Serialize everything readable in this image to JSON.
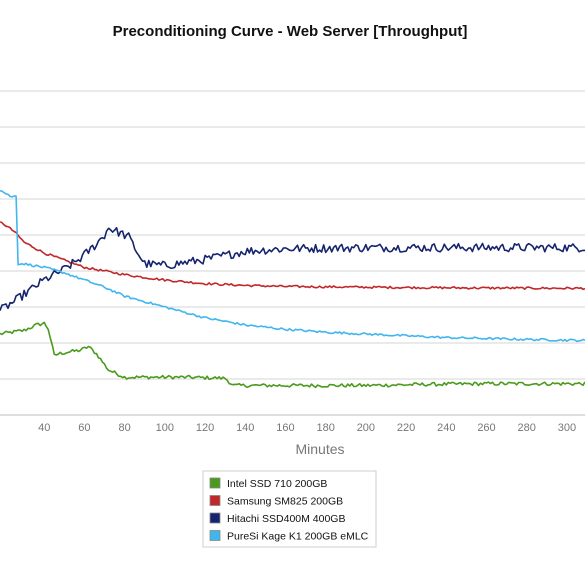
{
  "chart_data": {
    "type": "line",
    "title": "Preconditioning Curve - Web Server [Throughput]",
    "xlabel": "Minutes",
    "ylabel": "",
    "xlim": [
      18,
      309
    ],
    "ylim": [
      0,
      10
    ],
    "x_ticks": [
      40,
      60,
      80,
      100,
      120,
      140,
      160,
      180,
      200,
      220,
      240,
      260,
      280,
      300
    ],
    "y_gridlines": [
      1,
      2,
      3,
      4,
      5,
      6,
      7,
      8,
      9
    ],
    "grid": true,
    "legend_position": "bottom-center",
    "series": [
      {
        "name": "Intel SSD 710 200GB",
        "color": "#4a9a1c",
        "x": [
          18,
          30,
          36,
          40,
          42,
          45,
          47,
          52,
          58,
          62,
          66,
          72,
          80,
          90,
          100,
          110,
          130,
          134,
          150,
          180,
          200,
          230,
          260,
          290,
          309
        ],
        "y": [
          2.25,
          2.35,
          2.5,
          2.55,
          2.4,
          1.65,
          1.7,
          1.75,
          1.8,
          1.9,
          1.7,
          1.25,
          1.05,
          1.05,
          1.05,
          1.05,
          1.02,
          0.82,
          0.82,
          0.82,
          0.82,
          0.85,
          0.87,
          0.87,
          0.87
        ],
        "noise": 0.05
      },
      {
        "name": "Samsung SM825 200GB",
        "color": "#c0282a",
        "x": [
          18,
          20,
          25,
          30,
          40,
          50,
          60,
          70,
          80,
          90,
          100,
          110,
          120,
          140,
          160,
          200,
          250,
          300,
          309
        ],
        "y": [
          5.35,
          5.3,
          5.1,
          4.8,
          4.5,
          4.3,
          4.1,
          4.0,
          3.9,
          3.82,
          3.75,
          3.7,
          3.65,
          3.6,
          3.57,
          3.55,
          3.53,
          3.52,
          3.52
        ],
        "noise": 0.03
      },
      {
        "name": "Hitachi SSD400M 400GB",
        "color": "#15246e",
        "x": [
          18,
          25,
          30,
          40,
          50,
          58,
          65,
          70,
          72,
          78,
          82,
          86,
          90,
          100,
          120,
          140,
          160,
          200,
          250,
          309
        ],
        "y": [
          2.9,
          3.15,
          3.35,
          3.75,
          4.05,
          4.35,
          4.7,
          5.0,
          5.2,
          5.05,
          4.95,
          4.55,
          4.2,
          4.15,
          4.32,
          4.55,
          4.62,
          4.65,
          4.65,
          4.65
        ],
        "noise": 0.12
      },
      {
        "name": "PureSi Kage K1 200GB eMLC",
        "color": "#41b6ee",
        "x": [
          18,
          24,
          26,
          27,
          30,
          40,
          50,
          60,
          70,
          80,
          90,
          100,
          110,
          120,
          140,
          160,
          180,
          200,
          240,
          280,
          309
        ],
        "y": [
          6.25,
          6.05,
          6.1,
          4.2,
          4.2,
          4.1,
          3.95,
          3.75,
          3.55,
          3.3,
          3.15,
          3.0,
          2.85,
          2.7,
          2.5,
          2.38,
          2.3,
          2.25,
          2.15,
          2.1,
          2.07
        ],
        "noise": 0.03
      }
    ]
  }
}
